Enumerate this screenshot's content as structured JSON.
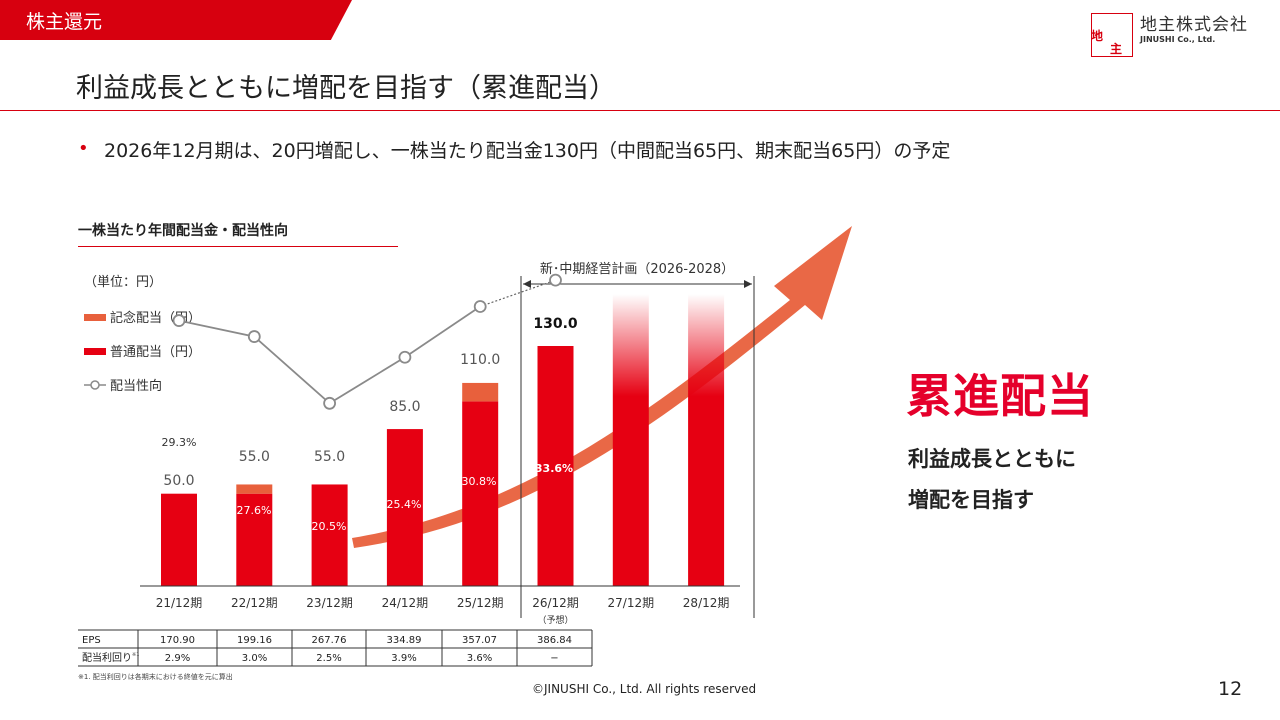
{
  "header": {
    "section_tag": "株主還元",
    "company_name": "地主株式会社",
    "company_en": "JINUSHI Co., Ltd.",
    "logo_char1": "地",
    "logo_char2": "主"
  },
  "page": {
    "title": "利益成長とともに増配を目指す（累進配当）",
    "bullet": "2026年12月期は、20円増配し、一株当たり配当金130円（中間配当65円、期末配当65円）の予定",
    "chart_title": "一株当たり年間配当金・配当性向",
    "big_label": "累進配当",
    "sub_line1": "利益成長とともに",
    "sub_line2": "増配を目指す",
    "footnote": "※1. 配当利回りは各期末における終値を元に算出",
    "copyright": "©JINUSHI Co., Ltd. All rights reserved",
    "page_number": "12"
  },
  "colors": {
    "brand_red": "#d7000f",
    "regular_bar": "#e60012",
    "commemorative_bar": "#e8603c",
    "arrow": "#e8603c",
    "payout_line": "#8a8a8a"
  },
  "chart_data": {
    "type": "bar",
    "title": "一株当たり年間配当金・配当性向",
    "unit_label": "（単位：円）",
    "categories": [
      "21/12期",
      "22/12期",
      "23/12期",
      "24/12期",
      "25/12期",
      "26/12期",
      "27/12期",
      "28/12期"
    ],
    "forecast_note": "（予想）",
    "plan_label": "新･中期経営計画（2026-2028）",
    "legend": {
      "commemorative": "記念配当（円）",
      "regular": "普通配当（円）",
      "payout": "配当性向"
    },
    "series": [
      {
        "name": "普通配当（円）",
        "values": [
          50.0,
          50.0,
          55.0,
          85.0,
          100.0,
          130.0,
          null,
          null
        ]
      },
      {
        "name": "記念配当（円）",
        "values": [
          0,
          5.0,
          0,
          0,
          10.0,
          0,
          null,
          null
        ]
      }
    ],
    "totals": [
      "50.0",
      "55.0",
      "55.0",
      "85.0",
      "110.0",
      "130.0",
      "",
      ""
    ],
    "payout_ratio": [
      29.3,
      27.6,
      20.5,
      25.4,
      30.8,
      33.6
    ],
    "payout_labels": [
      "29.3%",
      "27.6%",
      "20.5%",
      "25.4%",
      "30.8%",
      "33.6%"
    ],
    "future_bar_indices": [
      6,
      7
    ],
    "ylim": [
      0,
      130
    ],
    "table": {
      "rows": [
        {
          "label": "EPS",
          "values": [
            "170.90",
            "199.16",
            "267.76",
            "334.89",
            "357.07",
            "386.84"
          ]
        },
        {
          "label": "配当利回り",
          "values": [
            "2.9%",
            "3.0%",
            "2.5%",
            "3.9%",
            "3.6%",
            "−"
          ]
        }
      ],
      "row_note": "※1"
    }
  }
}
